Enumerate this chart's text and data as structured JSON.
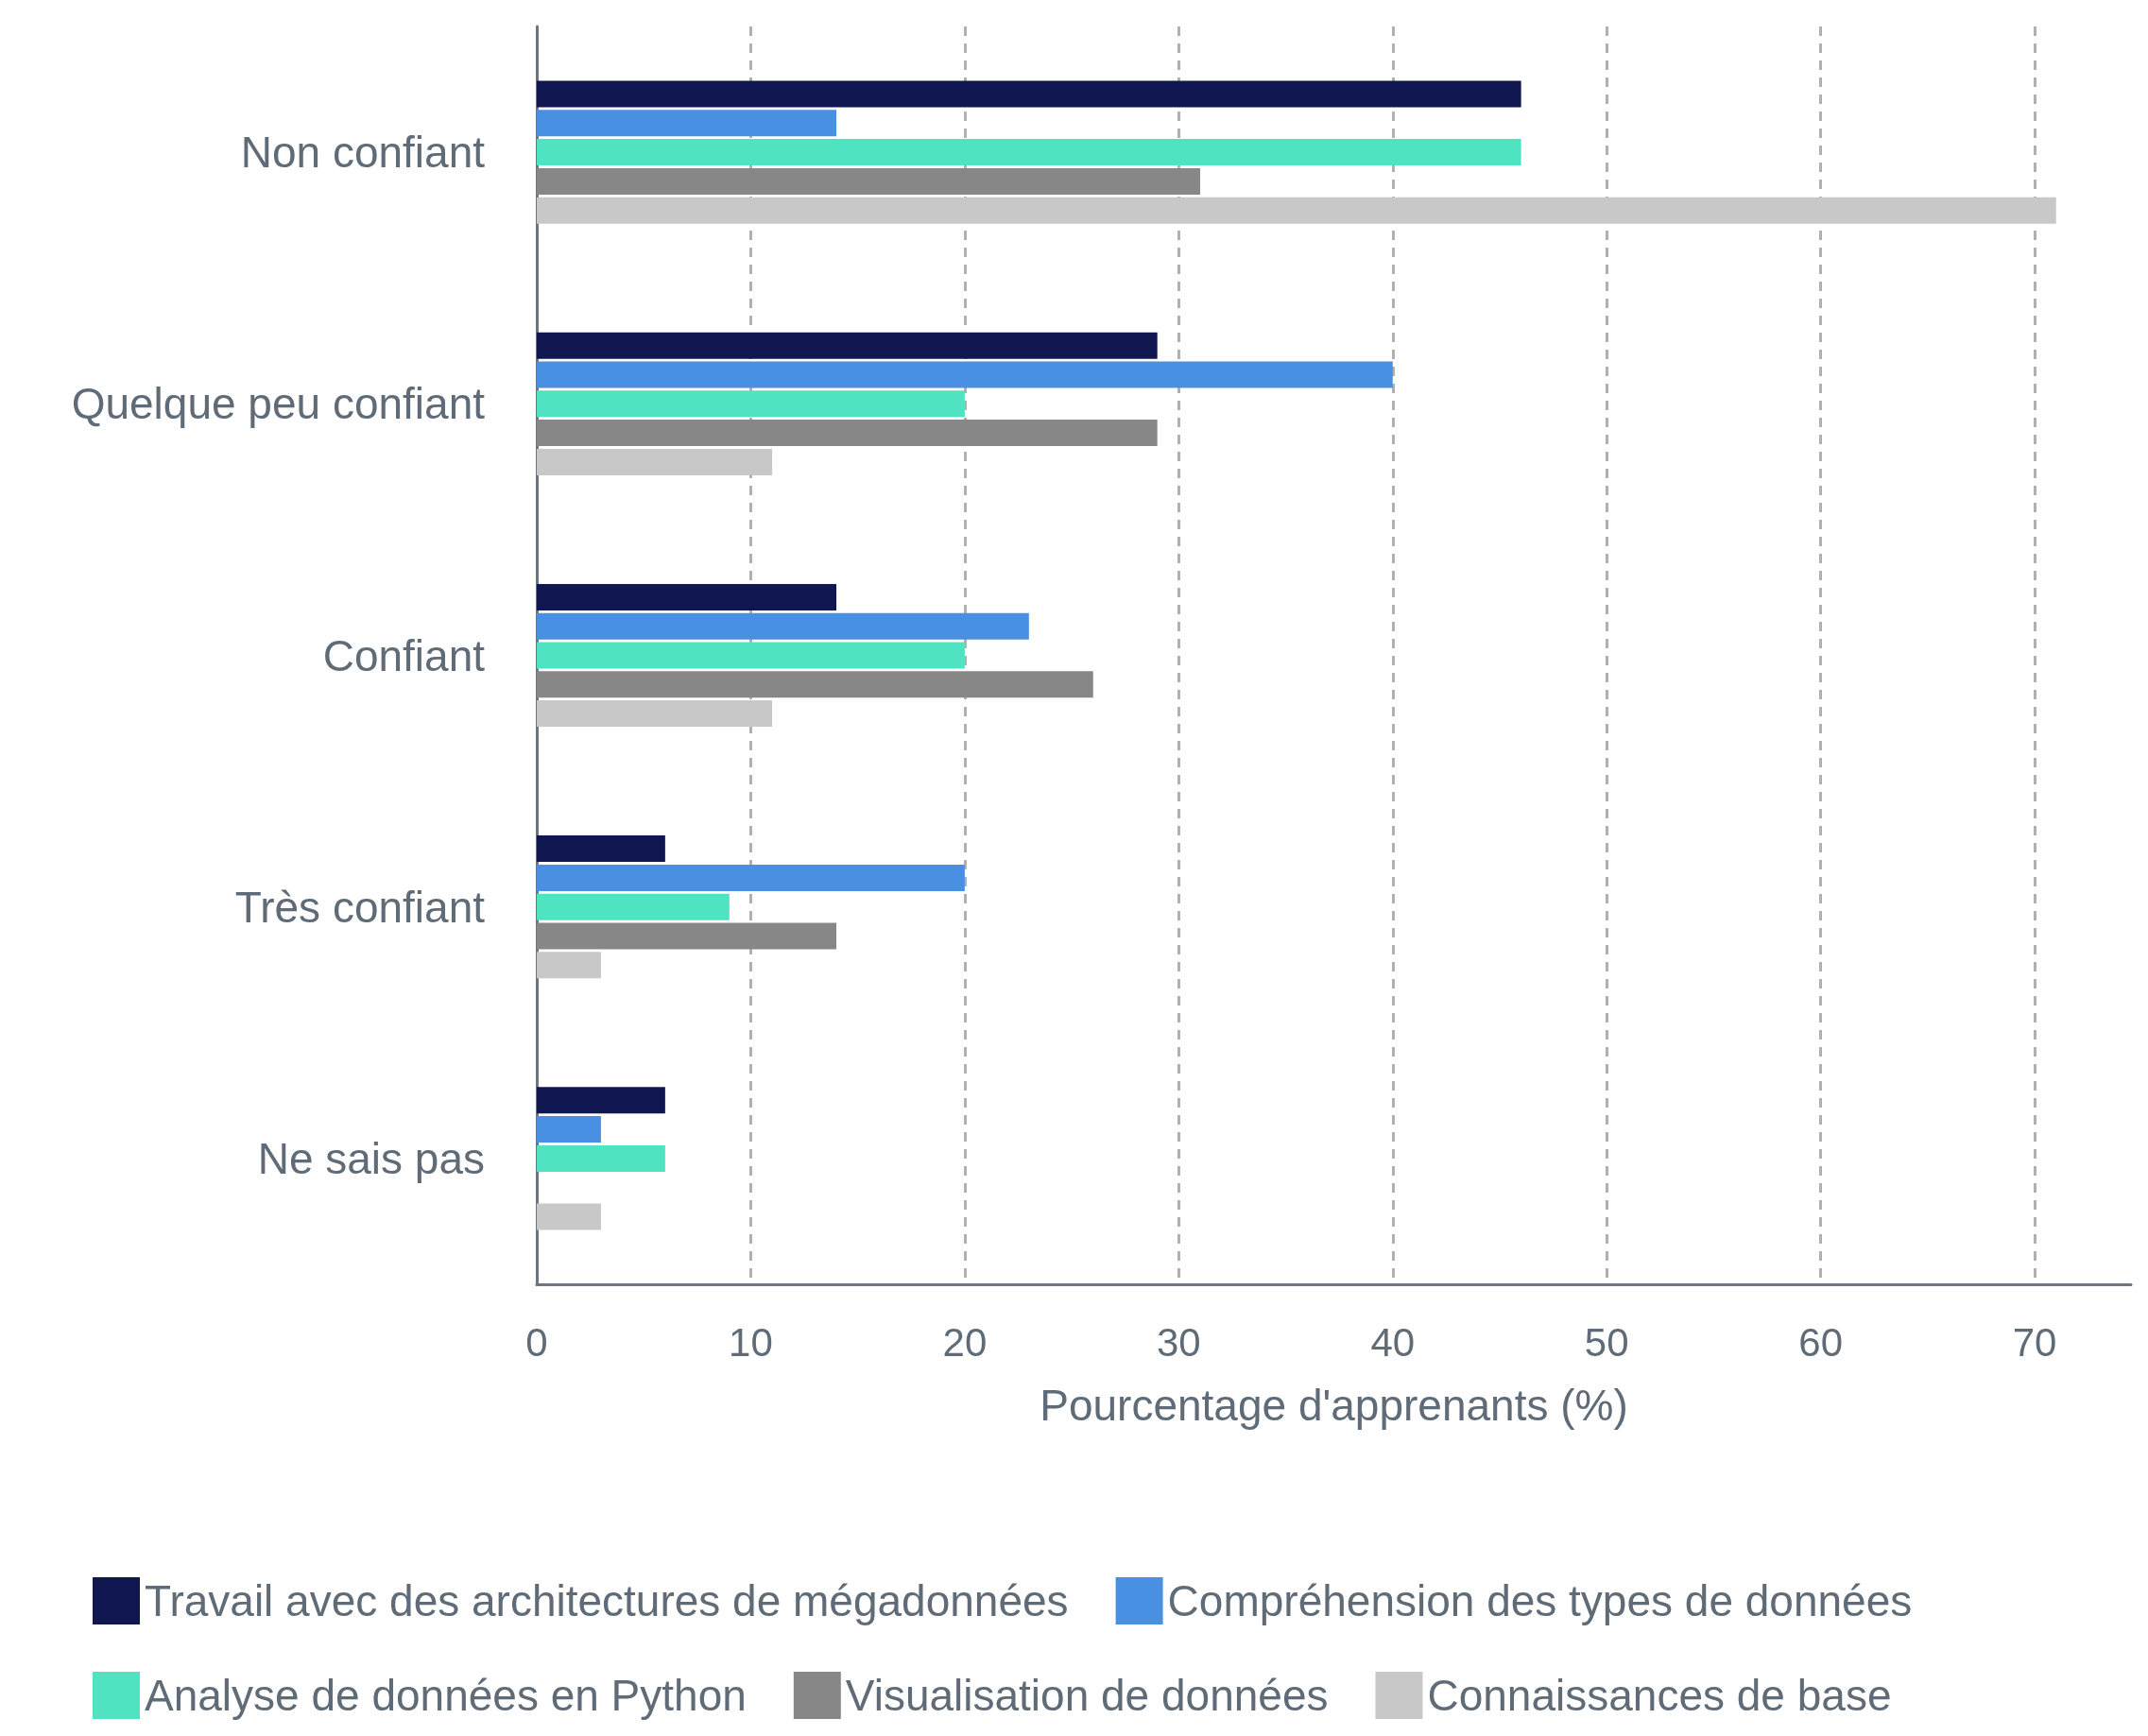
{
  "chart_data": {
    "type": "bar",
    "orientation": "horizontal",
    "xlabel": "Pourcentage d'apprenants (%)",
    "categories": [
      "Non confiant",
      "Quelque peu confiant",
      "Confiant",
      "Très confiant",
      "Ne sais pas"
    ],
    "series": [
      {
        "name": "Travail avec des architectures de mégadonnées",
        "color": "#0f1650",
        "values": [
          46,
          29,
          14,
          6,
          6
        ]
      },
      {
        "name": "Compréhension des types de données",
        "color": "#4a90e2",
        "values": [
          14,
          40,
          23,
          20,
          3
        ]
      },
      {
        "name": "Analyse de données en Python",
        "color": "#50e3c2",
        "values": [
          46,
          20,
          20,
          9,
          6
        ]
      },
      {
        "name": "Visualisation de données",
        "color": "#878787",
        "values": [
          31,
          29,
          26,
          14,
          0
        ]
      },
      {
        "name": "Connaissances de base",
        "color": "#c8c8c8",
        "values": [
          71,
          11,
          11,
          3,
          3
        ]
      }
    ],
    "xlim": [
      0,
      74.5
    ],
    "xticks": [
      0,
      10,
      20,
      30,
      40,
      50,
      60,
      70
    ],
    "grid": "x",
    "legend": "bottom"
  }
}
